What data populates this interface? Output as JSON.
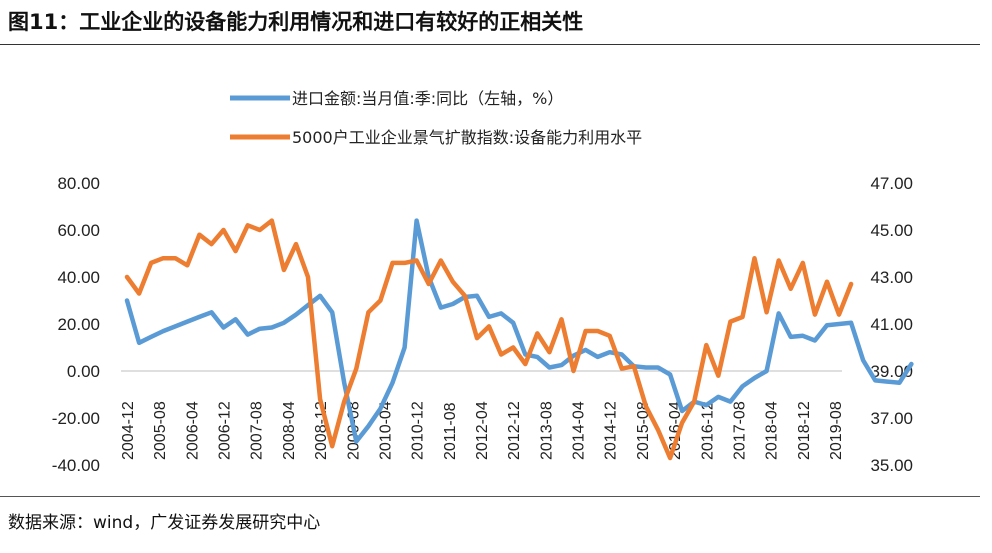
{
  "title": "图11：工业企业的设备能力利用情况和进口有较好的正相关性",
  "source": "数据来源：wind，广发证券发展研究中心",
  "colors": {
    "blue": "#5B9BD5",
    "orange": "#ED7D31"
  },
  "chart_data": {
    "type": "line",
    "title": "图11：工业企业的设备能力利用情况和进口有较好的正相关性",
    "x_tick_labels": [
      "2004-12",
      "2005-08",
      "2006-04",
      "2006-12",
      "2007-08",
      "2008-04",
      "2008-12",
      "2009-08",
      "2010-04",
      "2010-12",
      "2011-08",
      "2012-04",
      "2012-12",
      "2013-08",
      "2014-04",
      "2014-12",
      "2015-08",
      "2016-04",
      "2016-12",
      "2017-08",
      "2018-04",
      "2018-12",
      "2019-08"
    ],
    "y_left": {
      "min": -40,
      "max": 80,
      "step": 20,
      "tick_labels": [
        "80.00",
        "60.00",
        "40.00",
        "20.00",
        "0.00",
        "-20.00",
        "-40.00"
      ]
    },
    "y_right": {
      "min": 35,
      "max": 47,
      "step": 2,
      "tick_labels": [
        "47.00",
        "45.00",
        "43.00",
        "41.00",
        "39.00",
        "37.00",
        "35.00"
      ]
    },
    "legend_placement": "top-left",
    "series": [
      {
        "name": "进口金额:当月值:季:同比（左轴，%）",
        "axis": "left",
        "color": "#5B9BD5",
        "start": "2004-12",
        "values": [
          30,
          12,
          14.5,
          17,
          19,
          21,
          23,
          25,
          18.5,
          22,
          15.5,
          18,
          18.5,
          20.5,
          24,
          28,
          32,
          25,
          -5,
          -30,
          -23.5,
          -16,
          -5,
          10,
          64,
          40,
          27,
          28.5,
          31.5,
          32,
          23,
          24.5,
          20.5,
          7,
          6,
          1.5,
          2.5,
          6.5,
          9,
          6,
          8,
          7,
          2,
          1.5,
          1.5,
          -1.5,
          -17,
          -13,
          -14.5,
          -11,
          -13,
          -6.5,
          -3,
          0,
          24.5,
          14.5,
          15,
          13,
          19.5,
          20,
          20.5,
          4.5,
          -4,
          -4.5,
          -5,
          3
        ]
      },
      {
        "name": "5000户工业企业景气扩散指数:设备能力利用水平",
        "axis": "right",
        "color": "#ED7D31",
        "start": "2004-12",
        "values": [
          43.0,
          42.3,
          43.6,
          43.8,
          43.8,
          43.5,
          44.8,
          44.4,
          45.0,
          44.1,
          45.2,
          45.0,
          45.4,
          43.3,
          44.4,
          43.0,
          37.8,
          35.8,
          37.7,
          39.1,
          41.5,
          42.0,
          43.6,
          43.6,
          43.7,
          42.7,
          43.7,
          42.8,
          42.2,
          40.4,
          40.9,
          39.7,
          40.0,
          39.3,
          40.6,
          39.8,
          41.2,
          39.0,
          40.7,
          40.7,
          40.5,
          39.1,
          39.2,
          37.5,
          36.5,
          35.3,
          36.8,
          37.7,
          40.1,
          38.8,
          41.1,
          41.3,
          43.8,
          41.5,
          43.7,
          42.5,
          43.6,
          41.4,
          42.8,
          41.4,
          42.7
        ]
      }
    ]
  }
}
